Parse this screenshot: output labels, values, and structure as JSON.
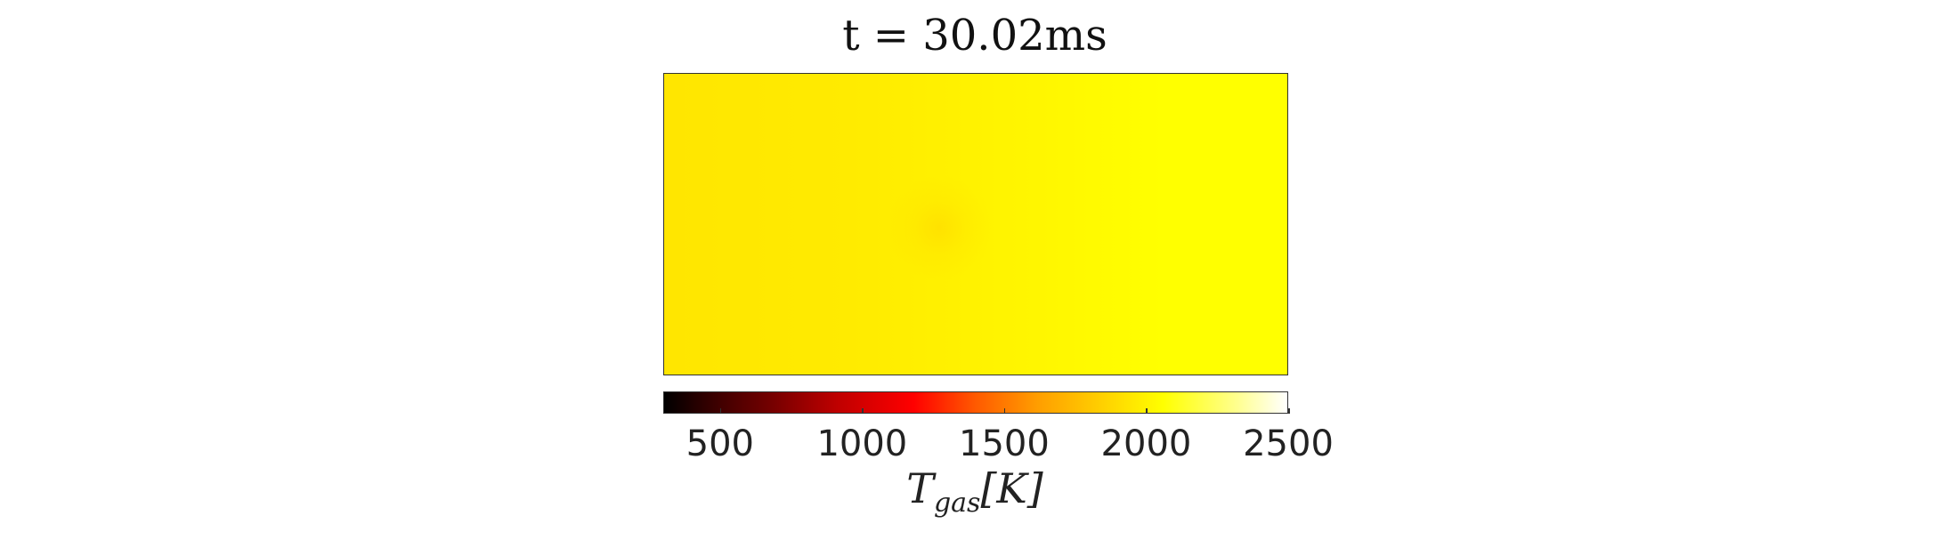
{
  "chart_data": {
    "type": "heatmap",
    "title": "t = 30.02ms",
    "colormap": "hot",
    "colorbar": {
      "label": "Tgas[K]",
      "range": [
        300,
        2500
      ],
      "ticks": [
        500,
        1000,
        1500,
        2000,
        2500
      ],
      "orientation": "horizontal",
      "placement": "bottom"
    },
    "field": {
      "description_values": "near-uniform temperature field",
      "left_edge_value": 2050,
      "right_edge_value": 2200,
      "hotspot_value": 2000
    },
    "colors": {
      "field_left": "#ffe600",
      "field_right": "#ffff00"
    }
  }
}
